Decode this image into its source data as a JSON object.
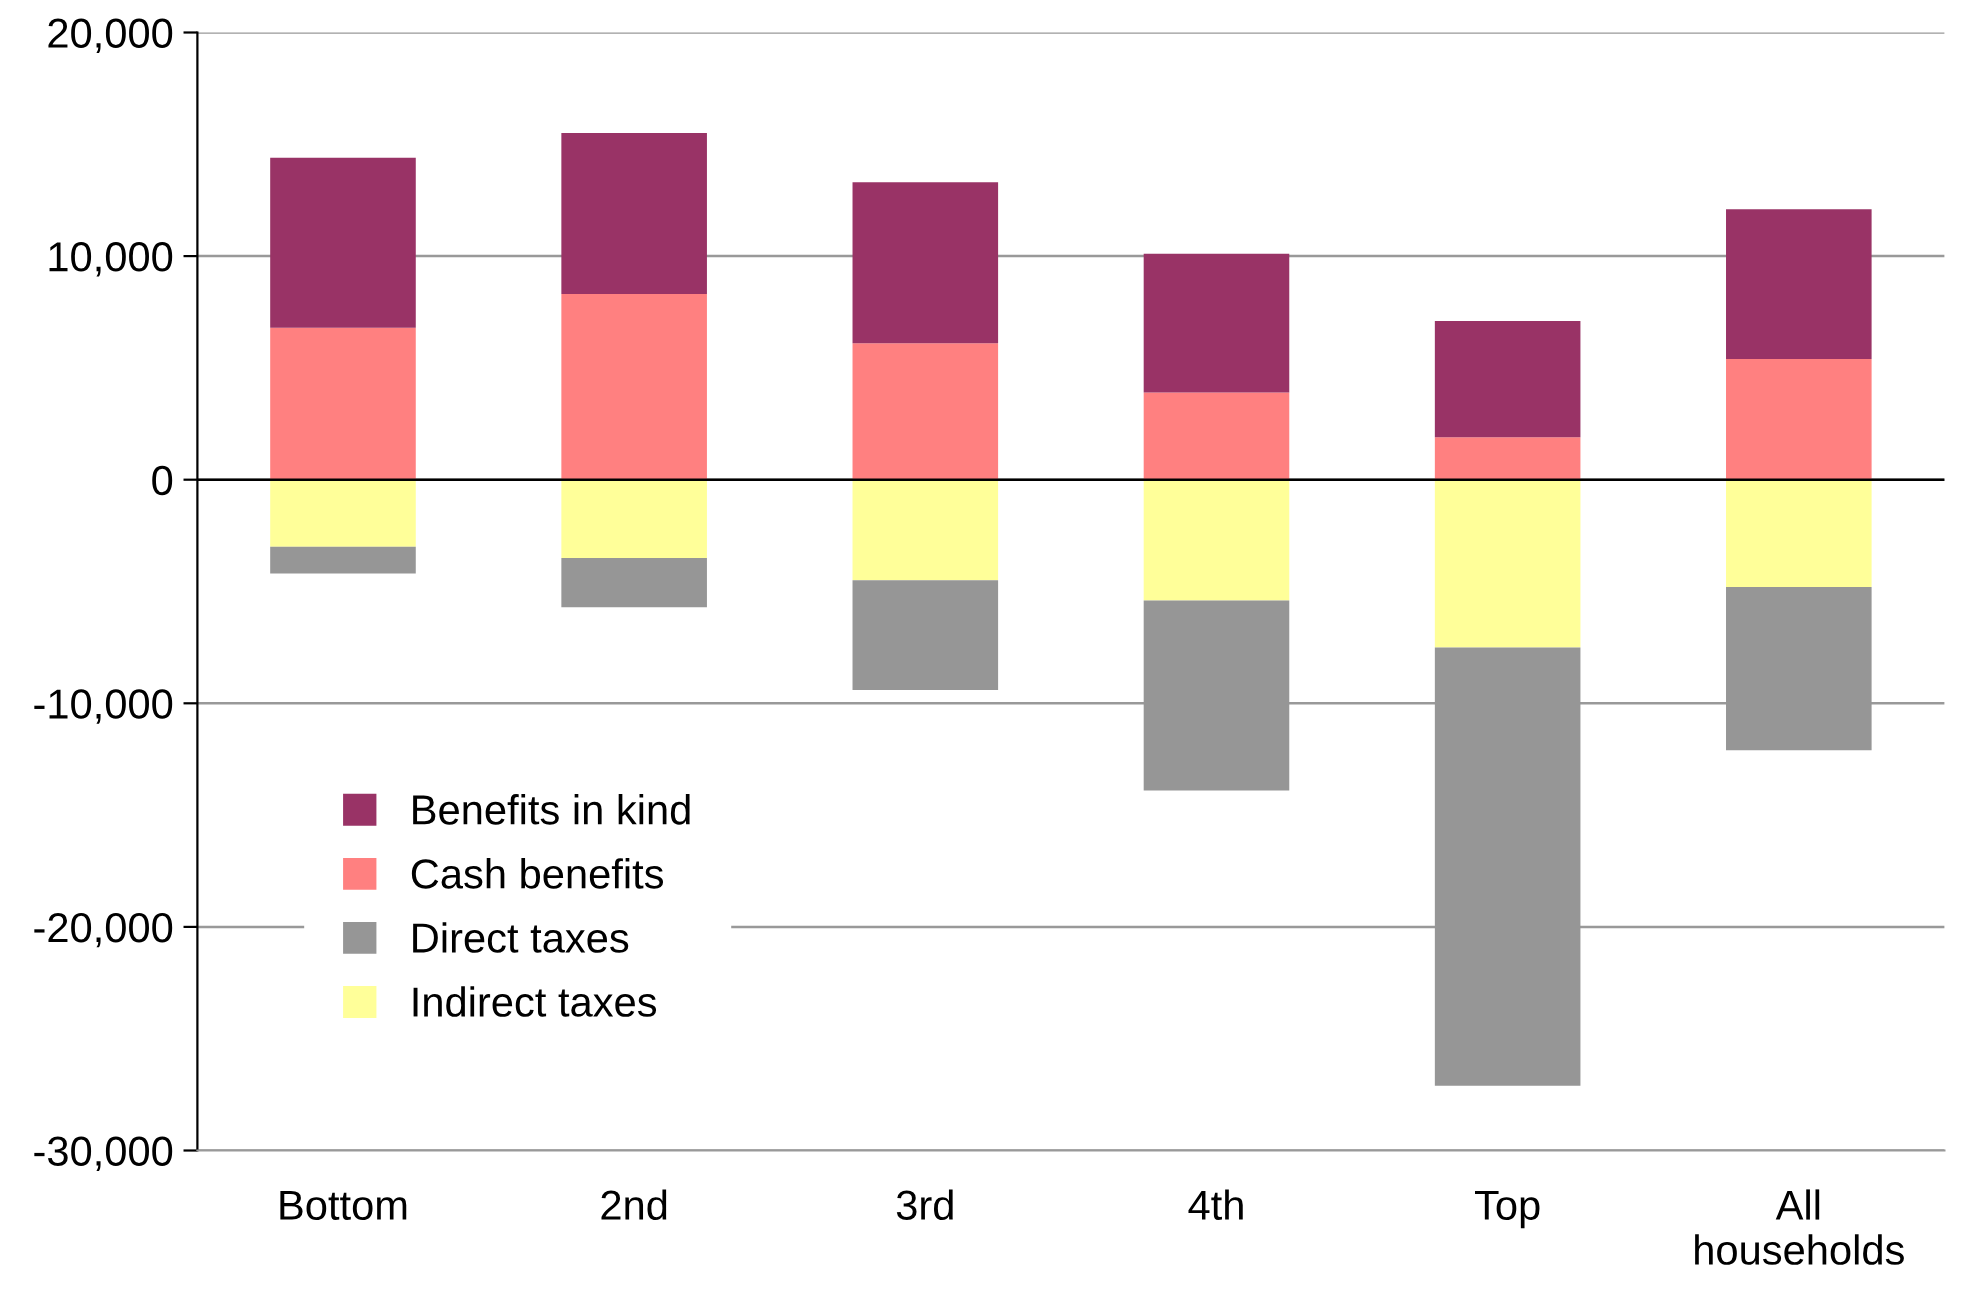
{
  "chart_data": {
    "type": "bar",
    "stacked": true,
    "categories": [
      "Bottom",
      "2nd",
      "3rd",
      "4th",
      "Top",
      "All\nhouseholds"
    ],
    "series": [
      {
        "name": "Indirect taxes",
        "color": "#ffff99",
        "values": [
          -3000,
          -3500,
          -4500,
          -5400,
          -7500,
          -4800
        ]
      },
      {
        "name": "Direct taxes",
        "color": "#969696",
        "values": [
          -1200,
          -2200,
          -4900,
          -8500,
          -19600,
          -7300
        ]
      },
      {
        "name": "Cash benefits",
        "color": "#ff8080",
        "values": [
          6800,
          8300,
          6100,
          3900,
          1900,
          5400
        ]
      },
      {
        "name": "Benefits in kind",
        "color": "#993366",
        "values": [
          7600,
          7200,
          7200,
          6200,
          5200,
          6700
        ]
      }
    ],
    "ylim": [
      -30000,
      20000
    ],
    "yticks": [
      {
        "value": -30000,
        "label": "-30,000"
      },
      {
        "value": -20000,
        "label": "-20,000"
      },
      {
        "value": -10000,
        "label": "-10,000"
      },
      0,
      {
        "value": 10000,
        "label": "10,000"
      },
      {
        "value": 20000,
        "label": "20,000"
      }
    ],
    "grid": "y",
    "legend": "bottom left"
  }
}
